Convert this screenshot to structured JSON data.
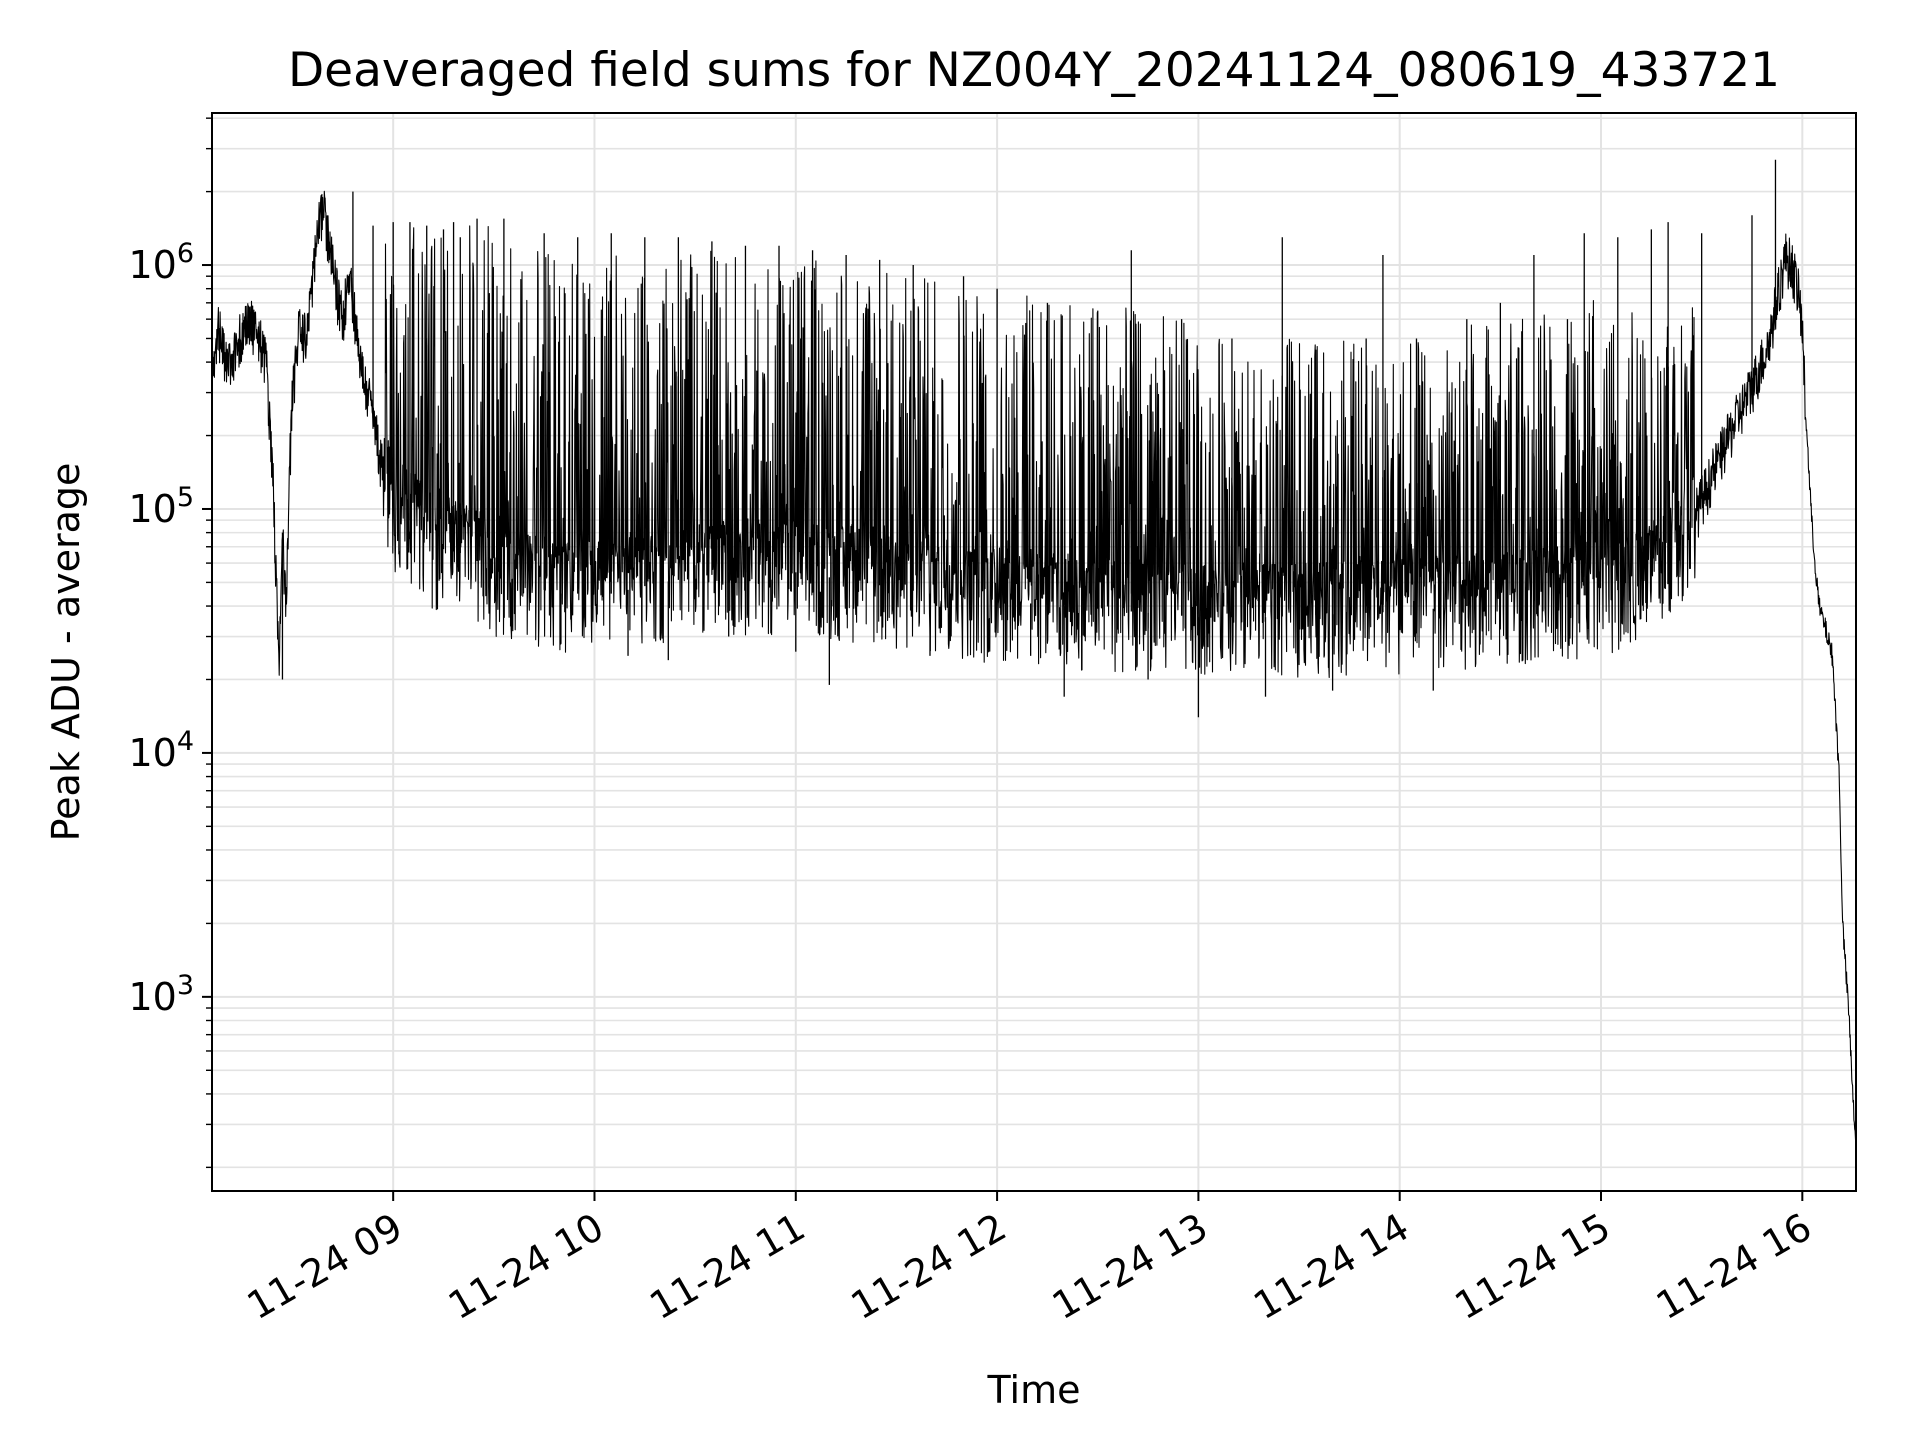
{
  "chart_data": {
    "type": "line",
    "title": "Deaveraged field sums for NZ004Y_20241124_080619_433721",
    "xlabel": "Time",
    "ylabel": "Peak ADU - average",
    "yscale": "log",
    "ylim": [
      160,
      4200000
    ],
    "xlim": [
      "2024-11-24 08:06",
      "2024-11-24 16:16"
    ],
    "grid": true,
    "line_color": "#000000",
    "x_ticks": [
      {
        "time": "2024-11-24 09:00",
        "label": "11-24 09"
      },
      {
        "time": "2024-11-24 10:00",
        "label": "11-24 10"
      },
      {
        "time": "2024-11-24 11:00",
        "label": "11-24 11"
      },
      {
        "time": "2024-11-24 12:00",
        "label": "11-24 12"
      },
      {
        "time": "2024-11-24 13:00",
        "label": "11-24 13"
      },
      {
        "time": "2024-11-24 14:00",
        "label": "11-24 14"
      },
      {
        "time": "2024-11-24 15:00",
        "label": "11-24 15"
      },
      {
        "time": "2024-11-24 16:00",
        "label": "11-24 16"
      }
    ],
    "y_ticks": [
      {
        "value": 1000,
        "base": "10",
        "exp": "3"
      },
      {
        "value": 10000,
        "base": "10",
        "exp": "4"
      },
      {
        "value": 100000,
        "base": "10",
        "exp": "5"
      },
      {
        "value": 1000000,
        "base": "10",
        "exp": "6"
      }
    ],
    "series": [
      {
        "points": [
          [
            "2024-11-24 08:06",
            350000
          ],
          [
            "2024-11-24 08:08",
            550000
          ],
          [
            "2024-11-24 08:10",
            400000
          ],
          [
            "2024-11-24 08:13",
            460000
          ],
          [
            "2024-11-24 08:16",
            580000
          ],
          [
            "2024-11-24 08:19",
            560000
          ],
          [
            "2024-11-24 08:22",
            420000
          ],
          [
            "2024-11-24 08:24",
            160000
          ],
          [
            "2024-11-24 08:25",
            60000
          ],
          [
            "2024-11-24 08:26",
            20000
          ],
          [
            "2024-11-24 08:27",
            80000
          ],
          [
            "2024-11-24 08:28",
            40000
          ],
          [
            "2024-11-24 08:29",
            130000
          ],
          [
            "2024-11-24 08:30",
            300000
          ],
          [
            "2024-11-24 08:32",
            550000
          ],
          [
            "2024-11-24 08:34",
            500000
          ],
          [
            "2024-11-24 08:37",
            1200000
          ],
          [
            "2024-11-24 08:39",
            1800000
          ],
          [
            "2024-11-24 08:41",
            1200000
          ],
          [
            "2024-11-24 08:43",
            800000
          ],
          [
            "2024-11-24 08:45",
            600000
          ],
          [
            "2024-11-24 08:47",
            1000000
          ],
          [
            "2024-11-24 08:49",
            550000
          ],
          [
            "2024-11-24 08:51",
            350000
          ],
          [
            "2024-11-24 08:53",
            280000
          ],
          [
            "2024-11-24 08:55",
            200000
          ],
          [
            "2024-11-24 08:57",
            140000
          ],
          [
            "2024-11-24 08:59",
            100000
          ],
          [
            "2024-11-24 09:05",
            90000
          ],
          [
            "2024-11-24 09:12",
            70000
          ],
          [
            "2024-11-24 09:22",
            65000
          ],
          [
            "2024-11-24 09:35",
            50000
          ],
          [
            "2024-11-24 09:50",
            45000
          ],
          [
            "2024-11-24 10:05",
            45000
          ],
          [
            "2024-11-24 10:20",
            50000
          ],
          [
            "2024-11-24 10:40",
            55000
          ],
          [
            "2024-11-24 11:00",
            55000
          ],
          [
            "2024-11-24 11:20",
            50000
          ],
          [
            "2024-11-24 11:40",
            45000
          ],
          [
            "2024-11-24 12:00",
            42000
          ],
          [
            "2024-11-24 12:20",
            40000
          ],
          [
            "2024-11-24 12:40",
            38000
          ],
          [
            "2024-11-24 13:00",
            36000
          ],
          [
            "2024-11-24 13:20",
            36000
          ],
          [
            "2024-11-24 13:40",
            37000
          ],
          [
            "2024-11-24 14:00",
            38000
          ],
          [
            "2024-11-24 14:20",
            40000
          ],
          [
            "2024-11-24 14:40",
            42000
          ],
          [
            "2024-11-24 15:00",
            45000
          ],
          [
            "2024-11-24 15:10",
            48000
          ],
          [
            "2024-11-24 15:20",
            60000
          ],
          [
            "2024-11-24 15:25",
            75000
          ],
          [
            "2024-11-24 15:30",
            110000
          ],
          [
            "2024-11-24 15:35",
            160000
          ],
          [
            "2024-11-24 15:40",
            230000
          ],
          [
            "2024-11-24 15:45",
            320000
          ],
          [
            "2024-11-24 15:50",
            480000
          ],
          [
            "2024-11-24 15:53",
            800000
          ],
          [
            "2024-11-24 15:55",
            1100000
          ],
          [
            "2024-11-24 15:57",
            1000000
          ],
          [
            "2024-11-24 15:59",
            750000
          ],
          [
            "2024-11-24 16:00",
            550000
          ],
          [
            "2024-11-24 16:01",
            250000
          ],
          [
            "2024-11-24 16:03",
            80000
          ],
          [
            "2024-11-24 16:05",
            40000
          ],
          [
            "2024-11-24 16:07",
            32000
          ],
          [
            "2024-11-24 16:09",
            25000
          ],
          [
            "2024-11-24 16:11",
            8000
          ],
          [
            "2024-11-24 16:12",
            2000
          ],
          [
            "2024-11-24 16:14",
            800
          ],
          [
            "2024-11-24 16:15",
            400
          ],
          [
            "2024-11-24 16:16",
            250
          ]
        ],
        "spikes": [
          [
            "2024-11-24 08:27",
            20000
          ],
          [
            "2024-11-24 08:48",
            2000000
          ],
          [
            "2024-11-24 08:54",
            1450000
          ],
          [
            "2024-11-24 09:00",
            1500000
          ],
          [
            "2024-11-24 09:05",
            1500000
          ],
          [
            "2024-11-24 09:10",
            1450000
          ],
          [
            "2024-11-24 09:15",
            1400000
          ],
          [
            "2024-11-24 09:18",
            1500000
          ],
          [
            "2024-11-24 09:20",
            1300000
          ],
          [
            "2024-11-24 09:25",
            1550000
          ],
          [
            "2024-11-24 09:33",
            1550000
          ],
          [
            "2024-11-24 09:35",
            33000
          ],
          [
            "2024-11-24 09:45",
            1350000
          ],
          [
            "2024-11-24 09:50",
            28000
          ],
          [
            "2024-11-24 09:55",
            1300000
          ],
          [
            "2024-11-24 10:05",
            1350000
          ],
          [
            "2024-11-24 10:10",
            25000
          ],
          [
            "2024-11-24 10:15",
            1300000
          ],
          [
            "2024-11-24 10:22",
            24000
          ],
          [
            "2024-11-24 10:25",
            1300000
          ],
          [
            "2024-11-24 10:35",
            1250000
          ],
          [
            "2024-11-24 10:40",
            30000
          ],
          [
            "2024-11-24 10:45",
            1200000
          ],
          [
            "2024-11-24 10:55",
            1200000
          ],
          [
            "2024-11-24 11:00",
            26000
          ],
          [
            "2024-11-24 11:05",
            1150000
          ],
          [
            "2024-11-24 11:10",
            19000
          ],
          [
            "2024-11-24 11:15",
            1100000
          ],
          [
            "2024-11-24 11:25",
            1050000
          ],
          [
            "2024-11-24 11:35",
            1000000
          ],
          [
            "2024-11-24 11:40",
            25000
          ],
          [
            "2024-11-24 11:50",
            900000
          ],
          [
            "2024-11-24 12:00",
            800000
          ],
          [
            "2024-11-24 12:10",
            25000
          ],
          [
            "2024-11-24 12:15",
            700000
          ],
          [
            "2024-11-24 12:20",
            17000
          ],
          [
            "2024-11-24 12:30",
            650000
          ],
          [
            "2024-11-24 12:40",
            1150000
          ],
          [
            "2024-11-24 12:45",
            20000
          ],
          [
            "2024-11-24 12:55",
            600000
          ],
          [
            "2024-11-24 13:00",
            14000
          ],
          [
            "2024-11-24 13:10",
            500000
          ],
          [
            "2024-11-24 13:20",
            17000
          ],
          [
            "2024-11-24 13:25",
            1300000
          ],
          [
            "2024-11-24 13:35",
            450000
          ],
          [
            "2024-11-24 13:40",
            18000
          ],
          [
            "2024-11-24 13:50",
            500000
          ],
          [
            "2024-11-24 13:55",
            1100000
          ],
          [
            "2024-11-24 14:05",
            500000
          ],
          [
            "2024-11-24 14:10",
            18000
          ],
          [
            "2024-11-24 14:20",
            600000
          ],
          [
            "2024-11-24 14:30",
            700000
          ],
          [
            "2024-11-24 14:40",
            1100000
          ],
          [
            "2024-11-24 14:50",
            600000
          ],
          [
            "2024-11-24 14:55",
            1350000
          ],
          [
            "2024-11-24 15:05",
            1300000
          ],
          [
            "2024-11-24 15:15",
            1400000
          ],
          [
            "2024-11-24 15:20",
            1500000
          ],
          [
            "2024-11-24 15:30",
            1350000
          ],
          [
            "2024-11-24 15:45",
            1600000
          ],
          [
            "2024-11-24 15:52",
            2700000
          ]
        ]
      }
    ]
  }
}
